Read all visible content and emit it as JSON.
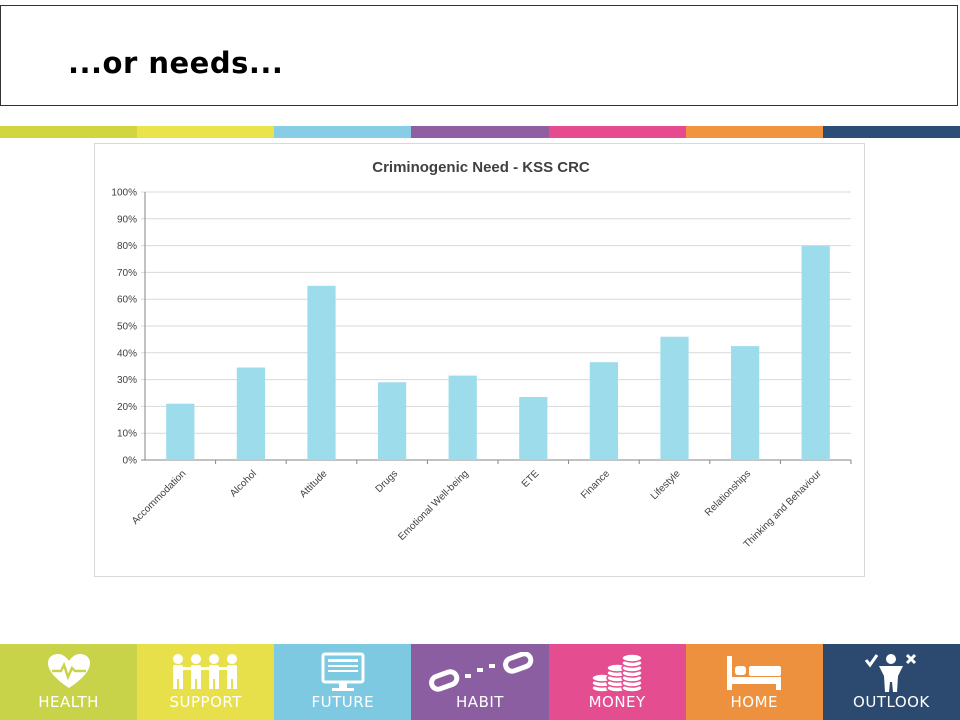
{
  "slide": {
    "title": "...or needs..."
  },
  "stripe_colors": [
    "#d1d53f",
    "#ebe34c",
    "#87cde6",
    "#8f5fa2",
    "#e54b8e",
    "#f0943f",
    "#2c4d76"
  ],
  "chart_data": {
    "type": "bar",
    "title": "Criminogenic Need - KSS CRC",
    "categories": [
      "Accommodation",
      "Alcohol",
      "Attitude",
      "Drugs",
      "Emotional Well-being",
      "ETE",
      "Finance",
      "Lifestyle",
      "Relationships",
      "Thinking and Behaviour"
    ],
    "values": [
      21,
      34.5,
      65,
      29,
      31.5,
      23.5,
      36.5,
      46,
      42.5,
      80
    ],
    "y_ticks": [
      "0%",
      "10%",
      "20%",
      "30%",
      "40%",
      "50%",
      "60%",
      "70%",
      "80%",
      "90%",
      "100%"
    ],
    "ylim": [
      0,
      100
    ],
    "bar_color": "#9ddcea",
    "grid": true
  },
  "footer": {
    "tiles": [
      {
        "label": "HEALTH",
        "icon": "heart-icon",
        "color": "#c9d34a"
      },
      {
        "label": "SUPPORT",
        "icon": "people-icon",
        "color": "#e8e04a"
      },
      {
        "label": "FUTURE",
        "icon": "computer-icon",
        "color": "#7ec9e2"
      },
      {
        "label": "HABIT",
        "icon": "chain-icon",
        "color": "#8b5ea1"
      },
      {
        "label": "MONEY",
        "icon": "coins-icon",
        "color": "#e44d8f"
      },
      {
        "label": "HOME",
        "icon": "bed-icon",
        "color": "#ee913e"
      },
      {
        "label": "OUTLOOK",
        "icon": "person-check-icon",
        "color": "#2c4a70"
      }
    ]
  }
}
